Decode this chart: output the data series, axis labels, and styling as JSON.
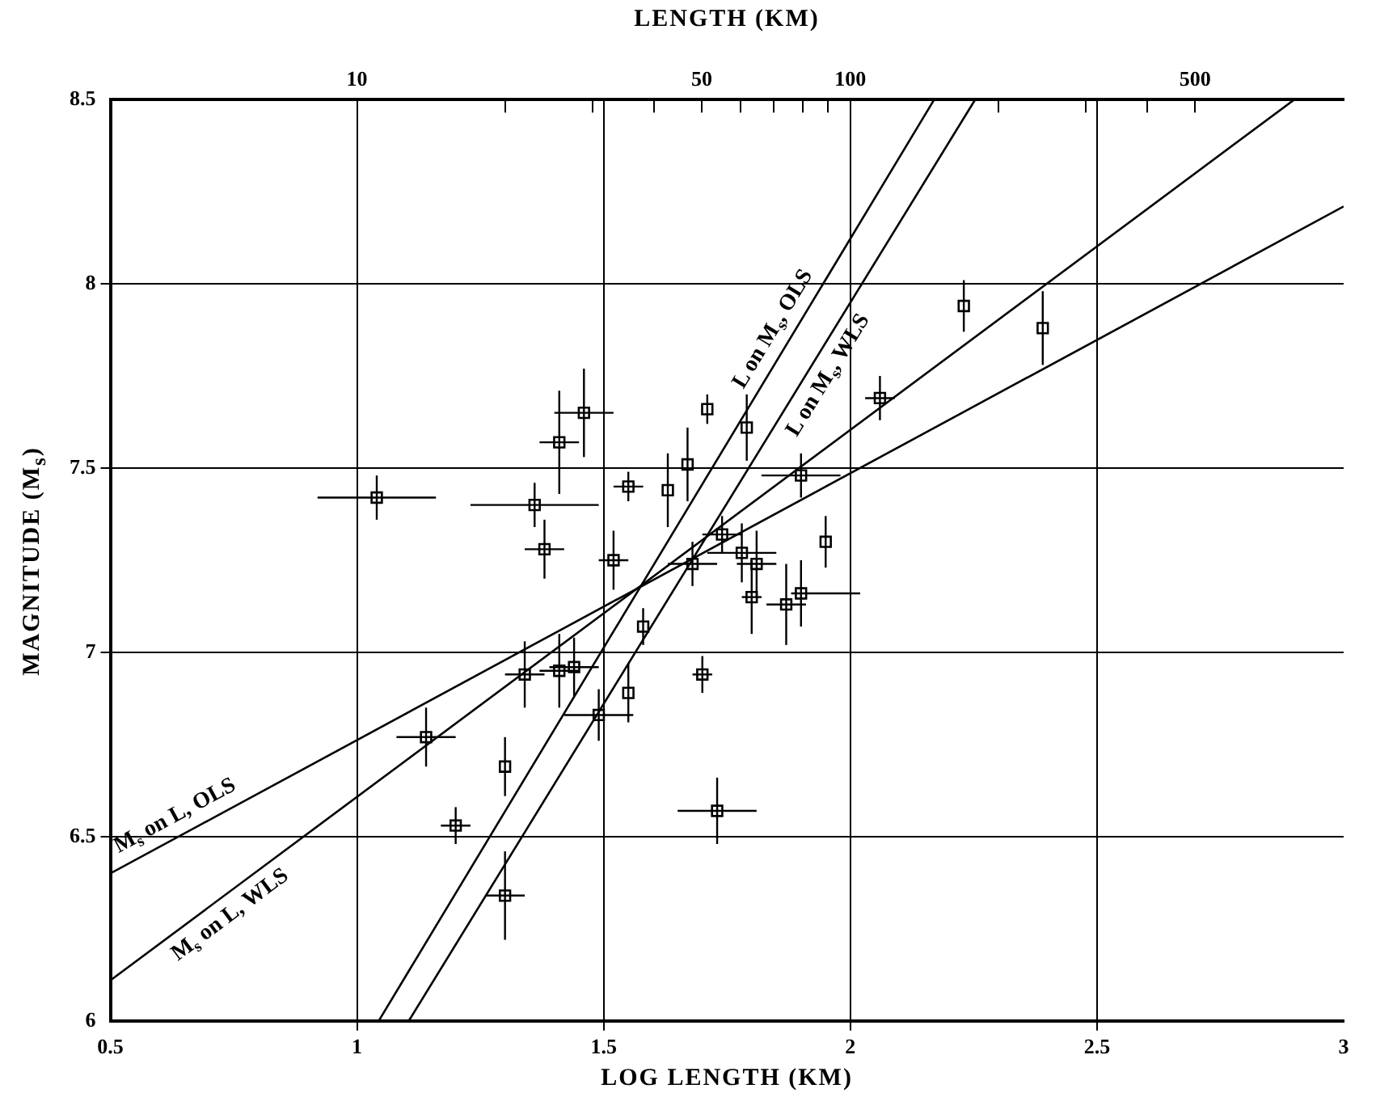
{
  "chart_data": {
    "type": "scatter",
    "xlabel": "LOG LENGTH (KM)",
    "ylabel": "MAGNITUDE (M$_{s}$)",
    "x2label": "LENGTH (KM)",
    "xlim": [
      0.5,
      3.0
    ],
    "xticks": [
      0.5,
      1.0,
      1.5,
      2.0,
      2.5,
      3.0
    ],
    "ylim": [
      6.0,
      8.5
    ],
    "yticks": [
      6.0,
      6.5,
      7.0,
      7.5,
      8.0,
      8.5
    ],
    "x2lim": [
      3.162,
      1000
    ],
    "x2ticks": [
      10,
      {
        "value": 20,
        "label": null
      },
      {
        "value": 30,
        "label": null
      },
      {
        "value": 40,
        "label": null
      },
      50,
      {
        "value": 60,
        "label": null
      },
      {
        "value": 70,
        "label": null
      },
      {
        "value": 80,
        "label": null
      },
      {
        "value": 90,
        "label": null
      },
      100,
      {
        "value": 200,
        "label": null
      },
      {
        "value": 300,
        "label": null
      },
      {
        "value": 400,
        "label": null
      },
      500
    ],
    "log": "x2",
    "grid": true,
    "legend": false,
    "series": [
      {
        "color": "#000000",
        "marker": "square",
        "x": [
          1.04,
          1.36,
          1.38,
          1.41,
          1.46,
          1.52,
          1.55,
          1.63,
          1.67,
          1.71,
          1.58,
          1.34,
          1.41,
          1.44,
          1.49,
          1.55,
          1.7,
          1.14,
          1.3,
          1.2,
          1.3,
          1.73,
          1.79,
          1.74,
          1.68,
          1.78,
          1.81,
          1.8,
          1.87,
          1.9,
          1.95,
          1.9,
          2.06,
          2.23,
          2.39
        ],
        "values": [
          7.42,
          7.4,
          7.28,
          7.57,
          7.65,
          7.25,
          7.45,
          7.44,
          7.51,
          7.66,
          7.07,
          6.94,
          6.95,
          6.96,
          6.83,
          6.89,
          6.94,
          6.77,
          6.69,
          6.53,
          6.34,
          6.57,
          7.61,
          7.32,
          7.24,
          7.27,
          7.24,
          7.15,
          7.13,
          7.16,
          7.3,
          7.48,
          7.69,
          7.94,
          7.88
        ],
        "errors": [
          0.06,
          0.06,
          0.08,
          0.14,
          0.12,
          0.08,
          0.04,
          0.1,
          0.1,
          0.04,
          0.05,
          0.09,
          0.1,
          0.08,
          0.07,
          0.08,
          0.05,
          0.08,
          0.08,
          0.05,
          0.12,
          0.09,
          0.09,
          0.05,
          0.06,
          0.08,
          0.09,
          0.1,
          0.11,
          0.09,
          0.07,
          0.06,
          0.06,
          0.07,
          0.1
        ],
        "xerrors": [
          0.12,
          0.13,
          0.04,
          0.04,
          0.06,
          0.03,
          0.03,
          null,
          null,
          null,
          null,
          0.04,
          0.04,
          0.05,
          0.07,
          null,
          0.02,
          0.06,
          null,
          0.03,
          0.04,
          0.08,
          null,
          0.04,
          0.05,
          0.07,
          0.04,
          0.02,
          0.04,
          [
            1.88,
            2.02
          ],
          null,
          0.08,
          0.03,
          null,
          null
        ]
      },
      {
        "type": "line",
        "color": "#000000",
        "x": [
          0.5,
          3.0
        ],
        "values": [
          6.4,
          8.21
        ]
      },
      {
        "type": "line",
        "color": "#000000",
        "x": [
          0.5,
          2.9
        ],
        "values": [
          6.11,
          8.5
        ]
      },
      {
        "type": "line",
        "color": "#000000",
        "x": [
          1.044,
          2.17
        ],
        "values": [
          6.0,
          8.5
        ]
      },
      {
        "type": "line",
        "color": "#000000",
        "x": [
          1.105,
          2.253
        ],
        "values": [
          6.0,
          8.5
        ]
      }
    ],
    "annotations": [
      {
        "text": "M$_{s}$ on L, OLS",
        "x": 0.65,
        "y": 6.51
      },
      {
        "text": "M$_{s}$ on L, WLS",
        "x": 0.72,
        "y": 6.33
      },
      {
        "text": "L on M$_{s}$, OLS",
        "x": 1.877,
        "y": 7.85
      },
      {
        "text": "L on M$_{s}$, WLS",
        "x": 1.922,
        "y": 7.78
      }
    ]
  }
}
